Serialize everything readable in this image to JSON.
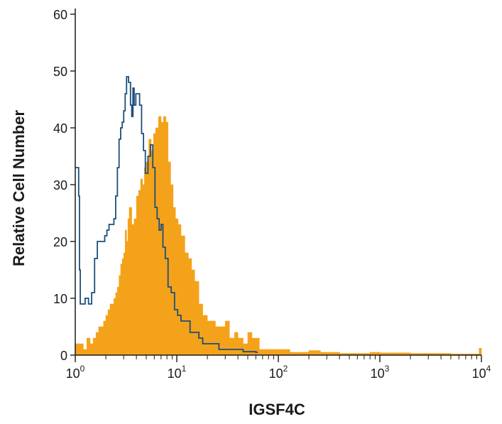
{
  "chart_data": {
    "type": "histogram",
    "title": "",
    "xlabel": "IGSF4C",
    "ylabel": "Relative Cell Number",
    "x_scale": "log",
    "xlim": [
      1,
      10000
    ],
    "ylim": [
      0,
      60
    ],
    "x_ticks": [
      {
        "value": 1,
        "base": "10",
        "exp": "0"
      },
      {
        "value": 10,
        "base": "10",
        "exp": "1"
      },
      {
        "value": 100,
        "base": "10",
        "exp": "2"
      },
      {
        "value": 1000,
        "base": "10",
        "exp": "3"
      },
      {
        "value": 10000,
        "base": "10",
        "exp": "4"
      }
    ],
    "y_ticks": [
      "0",
      "10",
      "20",
      "30",
      "40",
      "50",
      "60"
    ],
    "grid": false,
    "legend": "none",
    "series": [
      {
        "style": "filled",
        "color": "#f5a21b",
        "points": [
          [
            1.0,
            2
          ],
          [
            1.1,
            2
          ],
          [
            1.2,
            1
          ],
          [
            1.3,
            3
          ],
          [
            1.4,
            2
          ],
          [
            1.5,
            3
          ],
          [
            1.6,
            4
          ],
          [
            1.7,
            5
          ],
          [
            1.8,
            5
          ],
          [
            1.9,
            6
          ],
          [
            2.0,
            7
          ],
          [
            2.1,
            8
          ],
          [
            2.2,
            9
          ],
          [
            2.3,
            9
          ],
          [
            2.4,
            10
          ],
          [
            2.5,
            11
          ],
          [
            2.6,
            12
          ],
          [
            2.7,
            14
          ],
          [
            2.8,
            16
          ],
          [
            2.9,
            17
          ],
          [
            3.0,
            18
          ],
          [
            3.1,
            22
          ],
          [
            3.2,
            20
          ],
          [
            3.3,
            24
          ],
          [
            3.4,
            26
          ],
          [
            3.6,
            23
          ],
          [
            3.8,
            24
          ],
          [
            4.0,
            28
          ],
          [
            4.2,
            29
          ],
          [
            4.4,
            31
          ],
          [
            4.6,
            30
          ],
          [
            4.8,
            33
          ],
          [
            5.0,
            34
          ],
          [
            5.3,
            38
          ],
          [
            5.6,
            36
          ],
          [
            5.9,
            39
          ],
          [
            6.2,
            40
          ],
          [
            6.6,
            42
          ],
          [
            7.0,
            41
          ],
          [
            7.4,
            42
          ],
          [
            7.8,
            41
          ],
          [
            8.2,
            34
          ],
          [
            8.7,
            30
          ],
          [
            9.2,
            26
          ],
          [
            9.7,
            24
          ],
          [
            10.3,
            23
          ],
          [
            11.0,
            21
          ],
          [
            12.0,
            18
          ],
          [
            13.0,
            17
          ],
          [
            14.0,
            15
          ],
          [
            15.0,
            13
          ],
          [
            16.5,
            9
          ],
          [
            18.0,
            7
          ],
          [
            20.0,
            6
          ],
          [
            22.0,
            6
          ],
          [
            24.0,
            5
          ],
          [
            27.0,
            5
          ],
          [
            30.0,
            6
          ],
          [
            33.0,
            3
          ],
          [
            37.0,
            4
          ],
          [
            40.0,
            3
          ],
          [
            45.0,
            2
          ],
          [
            50.0,
            4
          ],
          [
            55.0,
            3
          ],
          [
            60.0,
            3
          ],
          [
            65.0,
            1
          ],
          [
            72.0,
            1
          ],
          [
            80.0,
            1
          ],
          [
            100.0,
            1
          ],
          [
            130.0,
            0.5
          ],
          [
            200.0,
            0.8
          ],
          [
            260.0,
            0.5
          ],
          [
            400.0,
            0.3
          ],
          [
            800.0,
            0.5
          ],
          [
            1000.0,
            0.4
          ],
          [
            2000.0,
            0.3
          ],
          [
            5000.0,
            0.2
          ],
          [
            9500.0,
            1.2
          ],
          [
            10000.0,
            1
          ]
        ]
      },
      {
        "style": "outline",
        "color": "#1d4e7a",
        "points": [
          [
            1.0,
            33
          ],
          [
            1.05,
            33
          ],
          [
            1.08,
            28
          ],
          [
            1.1,
            15
          ],
          [
            1.12,
            9
          ],
          [
            1.2,
            9
          ],
          [
            1.25,
            10
          ],
          [
            1.35,
            9
          ],
          [
            1.45,
            11
          ],
          [
            1.55,
            17
          ],
          [
            1.65,
            20
          ],
          [
            1.8,
            20
          ],
          [
            1.95,
            21
          ],
          [
            2.05,
            22
          ],
          [
            2.15,
            23
          ],
          [
            2.3,
            23
          ],
          [
            2.4,
            24
          ],
          [
            2.5,
            28
          ],
          [
            2.6,
            33
          ],
          [
            2.7,
            38
          ],
          [
            2.8,
            40
          ],
          [
            2.9,
            41
          ],
          [
            3.0,
            43
          ],
          [
            3.1,
            46
          ],
          [
            3.2,
            49
          ],
          [
            3.35,
            48
          ],
          [
            3.5,
            44
          ],
          [
            3.6,
            42
          ],
          [
            3.7,
            47
          ],
          [
            3.8,
            44
          ],
          [
            3.95,
            46
          ],
          [
            4.1,
            46
          ],
          [
            4.3,
            44
          ],
          [
            4.5,
            39
          ],
          [
            4.7,
            36
          ],
          [
            4.9,
            32
          ],
          [
            5.2,
            35
          ],
          [
            5.5,
            37
          ],
          [
            5.8,
            33
          ],
          [
            6.1,
            26
          ],
          [
            6.4,
            24
          ],
          [
            6.7,
            22
          ],
          [
            7.0,
            23
          ],
          [
            7.3,
            19
          ],
          [
            7.7,
            17
          ],
          [
            8.2,
            12
          ],
          [
            8.8,
            11
          ],
          [
            9.5,
            8
          ],
          [
            10.2,
            7
          ],
          [
            11.0,
            6
          ],
          [
            12.5,
            6
          ],
          [
            13.5,
            4
          ],
          [
            15.0,
            4
          ],
          [
            16.5,
            3
          ],
          [
            18.0,
            2
          ],
          [
            20.0,
            2
          ],
          [
            23.0,
            2
          ],
          [
            26.0,
            1
          ],
          [
            30.0,
            1
          ],
          [
            34.0,
            1
          ],
          [
            40.0,
            1
          ],
          [
            45.0,
            0.6
          ],
          [
            50.0,
            0.6
          ],
          [
            60.0,
            0.5
          ]
        ]
      }
    ]
  }
}
